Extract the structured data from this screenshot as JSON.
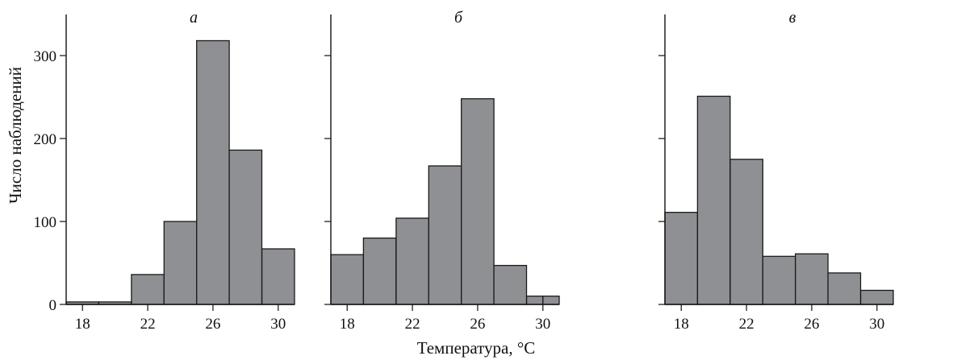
{
  "figure": {
    "xlabel": "Температура, °C",
    "ylabel": "Число наблюдений"
  },
  "colors": {
    "bar_fill": "#8f9093",
    "bar_stroke": "#1a1a1a",
    "axis": "#111111"
  },
  "chart_data": [
    {
      "type": "bar",
      "panel_label": "а",
      "bin_edges": [
        17,
        19,
        21,
        23,
        25,
        27,
        29,
        31
      ],
      "values": [
        3,
        3,
        36,
        100,
        318,
        186,
        67
      ],
      "x_ticks": [
        18,
        22,
        26,
        30
      ],
      "y_ticks": [
        0,
        100,
        200,
        300
      ],
      "xlim": [
        17,
        31
      ],
      "ylim": [
        0,
        345
      ],
      "xlabel": "Температура, °C",
      "ylabel": "Число наблюдений",
      "show_y_tick_labels": true
    },
    {
      "type": "bar",
      "panel_label": "б",
      "bin_edges": [
        17,
        19,
        21,
        23,
        25,
        27,
        29,
        30,
        31
      ],
      "values": [
        60,
        80,
        104,
        167,
        248,
        47,
        10,
        10
      ],
      "x_ticks": [
        18,
        22,
        26,
        30
      ],
      "y_ticks": [
        0,
        100,
        200,
        300
      ],
      "xlim": [
        17,
        31
      ],
      "ylim": [
        0,
        345
      ],
      "xlabel": "Температура, °C",
      "ylabel": "",
      "show_y_tick_labels": false
    },
    {
      "type": "bar",
      "panel_label": "в",
      "bin_edges": [
        17,
        19,
        21,
        23,
        25,
        27,
        29,
        31
      ],
      "values": [
        111,
        251,
        175,
        58,
        61,
        38,
        17
      ],
      "x_ticks": [
        18,
        22,
        26,
        30
      ],
      "y_ticks": [
        0,
        100,
        200,
        300
      ],
      "xlim": [
        17,
        31
      ],
      "ylim": [
        0,
        345
      ],
      "xlabel": "Температура, °C",
      "ylabel": "",
      "show_y_tick_labels": false
    }
  ]
}
